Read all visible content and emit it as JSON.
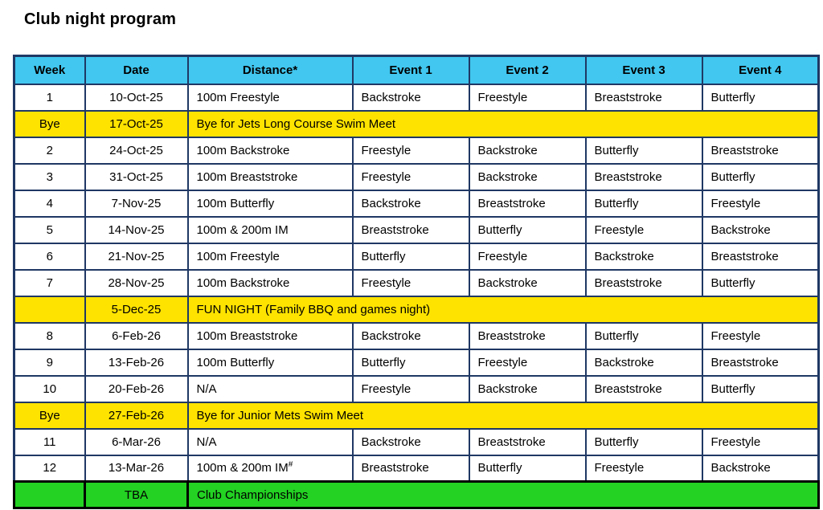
{
  "title": "Club night program",
  "colors": {
    "header_bg": "#41C7F0",
    "bye_row_bg": "#FFE300",
    "championship_row_bg": "#23D223",
    "grid_border": "#1F3864",
    "championship_border": "#000000",
    "text": "#000000"
  },
  "table": {
    "headers": [
      "Week",
      "Date",
      "Distance*",
      "Event 1",
      "Event 2",
      "Event 3",
      "Event 4"
    ],
    "rows": [
      {
        "type": "normal",
        "week": "1",
        "date": "10-Oct-25",
        "distance": "100m Freestyle",
        "events": [
          "Backstroke",
          "Freestyle",
          "Breaststroke",
          "Butterfly"
        ]
      },
      {
        "type": "bye",
        "week": "Bye",
        "date": "17-Oct-25",
        "note": "Bye for Jets Long Course Swim Meet"
      },
      {
        "type": "normal",
        "week": "2",
        "date": "24-Oct-25",
        "distance": "100m Backstroke",
        "events": [
          "Freestyle",
          "Backstroke",
          "Butterfly",
          "Breaststroke"
        ]
      },
      {
        "type": "normal",
        "week": "3",
        "date": "31-Oct-25",
        "distance": "100m Breaststroke",
        "events": [
          "Freestyle",
          "Backstroke",
          "Breaststroke",
          "Butterfly"
        ]
      },
      {
        "type": "normal",
        "week": "4",
        "date": "7-Nov-25",
        "distance": "100m Butterfly",
        "events": [
          "Backstroke",
          "Breaststroke",
          "Butterfly",
          "Freestyle"
        ]
      },
      {
        "type": "normal",
        "week": "5",
        "date": "14-Nov-25",
        "distance": "100m & 200m IM",
        "events": [
          "Breaststroke",
          "Butterfly",
          "Freestyle",
          "Backstroke"
        ]
      },
      {
        "type": "normal",
        "week": "6",
        "date": "21-Nov-25",
        "distance": "100m Freestyle",
        "events": [
          "Butterfly",
          "Freestyle",
          "Backstroke",
          "Breaststroke"
        ]
      },
      {
        "type": "normal",
        "week": "7",
        "date": "28-Nov-25",
        "distance": "100m Backstroke",
        "events": [
          "Freestyle",
          "Backstroke",
          "Breaststroke",
          "Butterfly"
        ]
      },
      {
        "type": "bye",
        "week": "",
        "date": "5-Dec-25",
        "note": "FUN NIGHT (Family BBQ and games night)"
      },
      {
        "type": "normal",
        "week": "8",
        "date": "6-Feb-26",
        "distance": "100m Breaststroke",
        "events": [
          "Backstroke",
          "Breaststroke",
          "Butterfly",
          "Freestyle"
        ]
      },
      {
        "type": "normal",
        "week": "9",
        "date": "13-Feb-26",
        "distance": "100m Butterfly",
        "events": [
          "Butterfly",
          "Freestyle",
          "Backstroke",
          "Breaststroke"
        ]
      },
      {
        "type": "normal",
        "week": "10",
        "date": "20-Feb-26",
        "distance": "N/A",
        "events": [
          "Freestyle",
          "Backstroke",
          "Breaststroke",
          "Butterfly"
        ]
      },
      {
        "type": "bye",
        "week": "Bye",
        "date": "27-Feb-26",
        "note": "Bye for Junior Mets Swim Meet"
      },
      {
        "type": "normal",
        "week": "11",
        "date": "6-Mar-26",
        "distance": "N/A",
        "events": [
          "Backstroke",
          "Breaststroke",
          "Butterfly",
          "Freestyle"
        ]
      },
      {
        "type": "normal",
        "week": "12",
        "date": "13-Mar-26",
        "distance": "100m & 200m IM",
        "distance_sup": "#",
        "events": [
          "Breaststroke",
          "Butterfly",
          "Freestyle",
          "Backstroke"
        ]
      },
      {
        "type": "championship",
        "week": "",
        "date": "TBA",
        "note": "Club Championships"
      }
    ]
  }
}
